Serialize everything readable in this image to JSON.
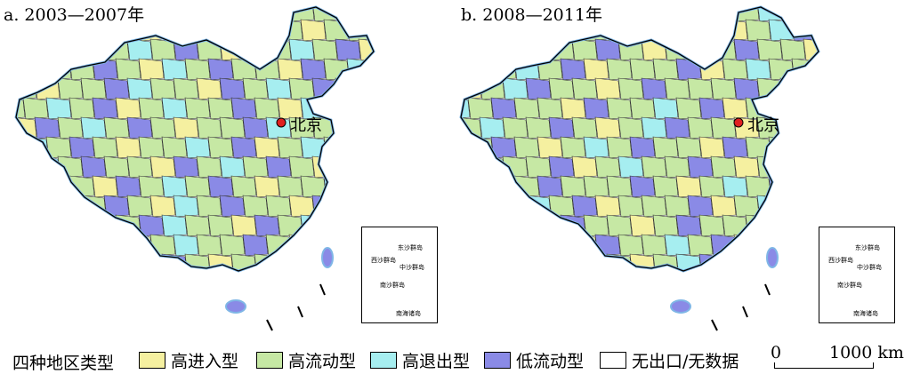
{
  "panels": [
    {
      "id": "a",
      "title": "a. 2003—2007年",
      "city": "北京",
      "inset_labels": [
        "东沙群岛",
        "西沙群岛",
        "中沙群岛",
        "南沙群岛",
        "南海诸岛"
      ]
    },
    {
      "id": "b",
      "title": "b. 2008—2011年",
      "city": "北京",
      "inset_labels": [
        "东沙群岛",
        "西沙群岛",
        "中沙群岛",
        "南沙群岛",
        "南海诸岛"
      ]
    }
  ],
  "legend": {
    "title": "四种地区类型",
    "items": [
      {
        "label": "高进入型",
        "color": "#f5f0a0"
      },
      {
        "label": "高流动型",
        "color": "#c6e8a4"
      },
      {
        "label": "高退出型",
        "color": "#a6eef0"
      },
      {
        "label": "低流动型",
        "color": "#8a8ae6"
      },
      {
        "label": "无出口/无数据",
        "color": "#ffffff"
      }
    ]
  },
  "scale": {
    "zero": "0",
    "label": "1000 km"
  },
  "colors": {
    "border": "#000000",
    "coast": "#7fb6e6",
    "capital_marker": "#e02020"
  }
}
